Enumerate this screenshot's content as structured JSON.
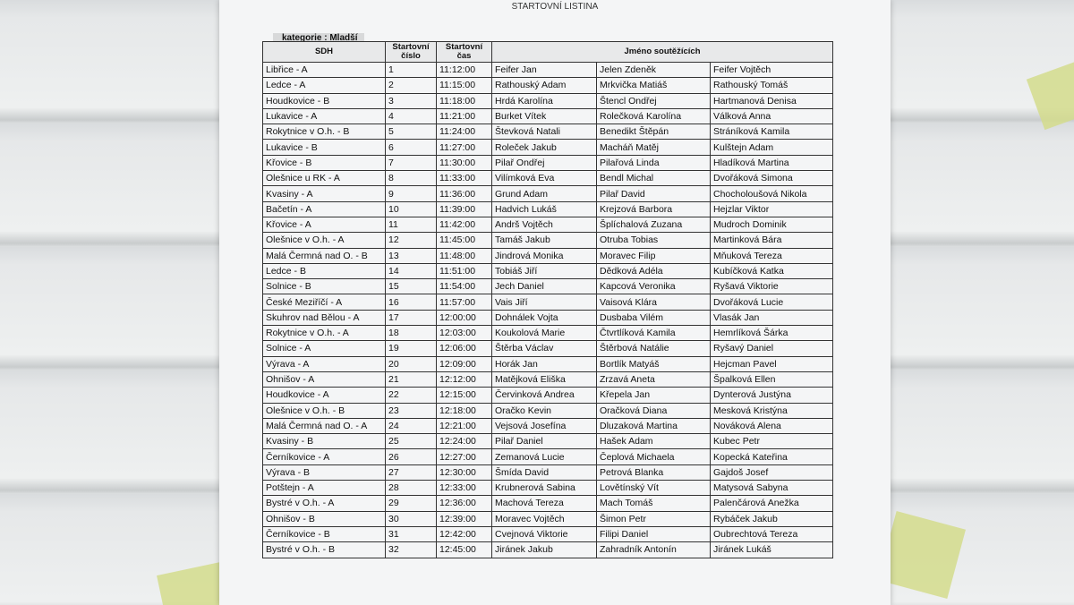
{
  "header": {
    "title": "STARTOVNÍ LISTINA",
    "category": "kategorie : Mladší"
  },
  "table": {
    "columns": [
      "SDH",
      "Startovní číslo",
      "Startovní čas",
      "Jméno soutěžících"
    ],
    "rows": [
      [
        "Libřice - A",
        1,
        "11:12:00",
        "Feifer Jan",
        "Jelen Zdeněk",
        "Feifer Vojtěch"
      ],
      [
        "Ledce - A",
        2,
        "11:15:00",
        "Rathouský Adam",
        "Mrkvička Matiáš",
        "Rathouský Tomáš"
      ],
      [
        "Houdkovice - B",
        3,
        "11:18:00",
        "Hrdá Karolína",
        "Štencl Ondřej",
        "Hartmanová Denisa"
      ],
      [
        "Lukavice - A",
        4,
        "11:21:00",
        "Burket Vítek",
        "Rolečková Karolína",
        "Válková Anna"
      ],
      [
        "Rokytnice v O.h. - B",
        5,
        "11:24:00",
        "Števková Natali",
        "Benedikt Štěpán",
        "Stráníková Kamila"
      ],
      [
        "Lukavice - B",
        6,
        "11:27:00",
        "Roleček Jakub",
        "Macháň Matěj",
        "Kulštejn Adam"
      ],
      [
        "Křovice - B",
        7,
        "11:30:00",
        "Pilař Ondřej",
        "Pilařová Linda",
        "Hladíková Martina"
      ],
      [
        "Olešnice u RK - A",
        8,
        "11:33:00",
        "Vilímková Eva",
        "Bendl Michal",
        "Dvořáková Simona"
      ],
      [
        "Kvasiny - A",
        9,
        "11:36:00",
        "Grund Adam",
        "Pilař David",
        "Chocholoušová Nikola"
      ],
      [
        "Bačetín - A",
        10,
        "11:39:00",
        "Hadvich Lukáš",
        "Krejzová Barbora",
        "Hejzlar Viktor"
      ],
      [
        "Křovice - A",
        11,
        "11:42:00",
        "Andrš Vojtěch",
        "Šplíchalová Zuzana",
        "Mudroch Dominik"
      ],
      [
        "Olešnice v O.h. - A",
        12,
        "11:45:00",
        "Tamáš Jakub",
        "Otruba Tobias",
        "Martinková Bára"
      ],
      [
        "Malá Čermná nad O. - B",
        13,
        "11:48:00",
        "Jindrová Monika",
        "Moravec Filip",
        "Mňuková Tereza"
      ],
      [
        "Ledce - B",
        14,
        "11:51:00",
        "Tobiáš Jiří",
        "Dědková Adéla",
        "Kubíčková Katka"
      ],
      [
        "Solnice - B",
        15,
        "11:54:00",
        "Jech Daniel",
        "Kapcová Veronika",
        "Ryšavá Viktorie"
      ],
      [
        "České Meziříčí - A",
        16,
        "11:57:00",
        "Vais Jiří",
        "Vaisová Klára",
        "Dvořáková Lucie"
      ],
      [
        "Skuhrov nad Bělou - A",
        17,
        "12:00:00",
        "Dohnálek Vojta",
        "Dusbaba Vilém",
        "Vlasák Jan"
      ],
      [
        "Rokytnice v O.h. - A",
        18,
        "12:03:00",
        "Koukolová Marie",
        "Čtvrtlíková Kamila",
        "Hemrlíková Šárka"
      ],
      [
        "Solnice - A",
        19,
        "12:06:00",
        "Štěrba Václav",
        "Štěrbová Natálie",
        "Ryšavý Daniel"
      ],
      [
        "Výrava - A",
        20,
        "12:09:00",
        "Horák Jan",
        "Bortlík Matyáš",
        "Hejcman Pavel"
      ],
      [
        "Ohnišov - A",
        21,
        "12:12:00",
        "Matějková Eliška",
        "Zrzavá Aneta",
        "Špalková Ellen"
      ],
      [
        "Houdkovice - A",
        22,
        "12:15:00",
        "Červinková Andrea",
        "Křepela Jan",
        "Dynterová Justýna"
      ],
      [
        "Olešnice v O.h. - B",
        23,
        "12:18:00",
        "Oračko Kevin",
        "Oračková Diana",
        "Mesková Kristýna"
      ],
      [
        "Malá Čermná nad O. - A",
        24,
        "12:21:00",
        "Vejsová Josefína",
        "Dluzaková Martina",
        "Nováková Alena"
      ],
      [
        "Kvasiny - B",
        25,
        "12:24:00",
        "Pilař Daniel",
        "Hašek Adam",
        "Kubec Petr"
      ],
      [
        "Černíkovice - A",
        26,
        "12:27:00",
        "Zemanová Lucie",
        "Čeplová Michaela",
        "Kopecká Kateřina"
      ],
      [
        "Výrava - B",
        27,
        "12:30:00",
        "Šmída David",
        "Petrová Blanka",
        "Gajdoš Josef"
      ],
      [
        "Potštejn - A",
        28,
        "12:33:00",
        "Krubnerová Sabina",
        "Lovětínský Vít",
        "Matysová Sabyna"
      ],
      [
        "Bystré v O.h. - A",
        29,
        "12:36:00",
        "Machová Tereza",
        "Mach Tomáš",
        "Palenčárová Anežka"
      ],
      [
        "Ohnišov - B",
        30,
        "12:39:00",
        "Moravec Vojtěch",
        "Šimon Petr",
        "Rybáček Jakub"
      ],
      [
        "Černíkovice - B",
        31,
        "12:42:00",
        "Cvejnová Viktorie",
        "Filipi Daniel",
        "Oubrechtová Tereza"
      ],
      [
        "Bystré v O.h. - B",
        32,
        "12:45:00",
        "Jiránek Jakub",
        "Zahradník Antonín",
        "Jiránek Lukáš"
      ]
    ]
  }
}
